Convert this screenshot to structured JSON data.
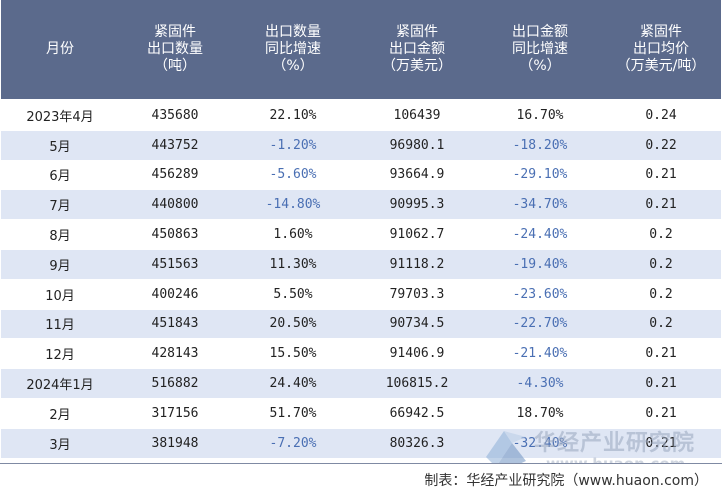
{
  "table": {
    "headers": [
      [
        "月份"
      ],
      [
        "紧固件",
        "出口数量",
        "（吨）"
      ],
      [
        "出口数量",
        "同比增速",
        "（%）"
      ],
      [
        "紧固件",
        "出口金额",
        "（万美元）"
      ],
      [
        "出口金额",
        "同比增速",
        "（%）"
      ],
      [
        "紧固件",
        "出口均价",
        "（万美元/吨）"
      ]
    ],
    "rows": [
      [
        "2023年4月",
        "435680",
        "22.10%",
        "106439",
        "16.70%",
        "0.24"
      ],
      [
        "5月",
        "443752",
        "-1.20%",
        "96980.1",
        "-18.20%",
        "0.22"
      ],
      [
        "6月",
        "456289",
        "-5.60%",
        "93664.9",
        "-29.10%",
        "0.21"
      ],
      [
        "7月",
        "440800",
        "-14.80%",
        "90995.3",
        "-34.70%",
        "0.21"
      ],
      [
        "8月",
        "450863",
        "1.60%",
        "91062.7",
        "-24.40%",
        "0.2"
      ],
      [
        "9月",
        "451563",
        "11.30%",
        "91118.2",
        "-19.40%",
        "0.2"
      ],
      [
        "10月",
        "400246",
        "5.50%",
        "79703.3",
        "-23.60%",
        "0.2"
      ],
      [
        "11月",
        "451843",
        "20.50%",
        "90734.5",
        "-22.70%",
        "0.2"
      ],
      [
        "12月",
        "428143",
        "15.50%",
        "91406.9",
        "-21.40%",
        "0.21"
      ],
      [
        "2024年1月",
        "516882",
        "24.40%",
        "106815.2",
        "-4.30%",
        "0.21"
      ],
      [
        "2月",
        "317156",
        "51.70%",
        "66942.5",
        "18.70%",
        "0.21"
      ],
      [
        "3月",
        "381948",
        "-7.20%",
        "80326.3",
        "-32.40%",
        "0.21"
      ]
    ]
  },
  "footer": {
    "credit": "制表：华经产业研究院（www.huaon.com）"
  },
  "watermark": {
    "name": "华经产业研究院",
    "url": "www.huaon.com"
  },
  "colors": {
    "header_bg": "#5b6a8c",
    "alt_row_bg": "#dfe6f4",
    "negative_text": "#4a6fb3"
  }
}
